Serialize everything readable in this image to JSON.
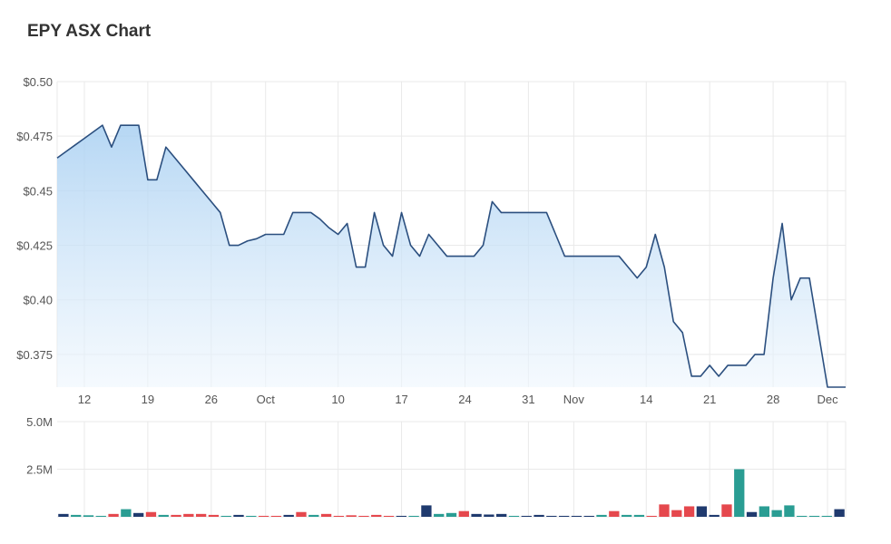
{
  "chart_title": "EPY ASX Chart",
  "colors": {
    "price_line": "#2b4f7f",
    "price_fill_top": "#a9d0f2",
    "price_fill_bottom": "#eef6fd",
    "vol_navy": "#1f3a6e",
    "vol_teal": "#2a9d93",
    "vol_red": "#e5484d",
    "grid": "#e9e9e9"
  },
  "chart_data": [
    {
      "type": "area",
      "title": "EPY ASX Chart",
      "x_tick_labels": [
        "12",
        "19",
        "26",
        "Oct",
        "10",
        "17",
        "24",
        "31",
        "Nov",
        "14",
        "21",
        "28",
        "Dec"
      ],
      "y_tick_labels": [
        "$0.50",
        "$0.475",
        "$0.45",
        "$0.425",
        "$0.40",
        "$0.375"
      ],
      "y_ticks": [
        0.5,
        0.475,
        0.45,
        0.425,
        0.4,
        0.375
      ],
      "ylim": [
        0.36,
        0.5
      ],
      "grid": true,
      "x": [
        "Sep 9",
        "Sep 10",
        "Sep 11",
        "Sep 12",
        "Sep 13",
        "Sep 14",
        "Sep 15",
        "Sep 16",
        "Sep 17",
        "Sep 18",
        "Sep 19",
        "Sep 20",
        "Sep 21",
        "Sep 22",
        "Sep 23",
        "Sep 24",
        "Sep 25",
        "Sep 26",
        "Sep 27",
        "Sep 28",
        "Sep 29",
        "Sep 30",
        "Oct 1",
        "Oct 2",
        "Oct 3",
        "Oct 4",
        "Oct 5",
        "Oct 6",
        "Oct 7",
        "Oct 8",
        "Oct 9",
        "Oct 10",
        "Oct 11",
        "Oct 12",
        "Oct 13",
        "Oct 14",
        "Oct 15",
        "Oct 16",
        "Oct 17",
        "Oct 18",
        "Oct 19",
        "Oct 20",
        "Oct 21",
        "Oct 22",
        "Oct 23",
        "Oct 24",
        "Oct 25",
        "Oct 26",
        "Oct 27",
        "Oct 28",
        "Oct 29",
        "Oct 30",
        "Oct 31",
        "Nov 1",
        "Nov 2",
        "Nov 3",
        "Nov 4",
        "Nov 5",
        "Nov 6",
        "Nov 7",
        "Nov 8",
        "Nov 9",
        "Nov 10",
        "Nov 11",
        "Nov 12",
        "Nov 13",
        "Nov 14",
        "Nov 15",
        "Nov 16",
        "Nov 17",
        "Nov 18",
        "Nov 19",
        "Nov 20",
        "Nov 21",
        "Nov 22",
        "Nov 23",
        "Nov 24",
        "Nov 25",
        "Nov 26",
        "Nov 27",
        "Nov 28",
        "Nov 29",
        "Nov 30",
        "Dec 1",
        "Dec 2",
        "Dec 3",
        "Dec 4",
        "Dec 5"
      ],
      "series": [
        {
          "values": [
            0.465,
            0.468,
            0.471,
            0.474,
            0.477,
            0.48,
            0.47,
            0.48,
            0.48,
            0.48,
            0.455,
            0.455,
            0.47,
            0.465,
            0.46,
            0.455,
            0.45,
            0.445,
            0.44,
            0.425,
            0.425,
            0.427,
            0.428,
            0.43,
            0.43,
            0.43,
            0.44,
            0.44,
            0.44,
            0.437,
            0.433,
            0.43,
            0.435,
            0.415,
            0.415,
            0.44,
            0.425,
            0.42,
            0.44,
            0.425,
            0.42,
            0.43,
            0.425,
            0.42,
            0.42,
            0.42,
            0.42,
            0.425,
            0.445,
            0.44,
            0.44,
            0.44,
            0.44,
            0.44,
            0.44,
            0.43,
            0.42,
            0.42,
            0.42,
            0.42,
            0.42,
            0.42,
            0.42,
            0.415,
            0.41,
            0.415,
            0.43,
            0.415,
            0.39,
            0.385,
            0.365,
            0.365,
            0.37,
            0.365,
            0.37,
            0.37,
            0.37,
            0.375,
            0.375,
            0.41,
            0.435,
            0.4,
            0.41,
            0.41,
            0.385,
            0.36,
            0.36,
            0.36
          ]
        }
      ]
    },
    {
      "type": "bar",
      "y_tick_labels": [
        "5.0M",
        "2.5M"
      ],
      "ylim": [
        0,
        5000000
      ],
      "grid": true,
      "values": [
        150000,
        100000,
        80000,
        50000,
        150000,
        400000,
        200000,
        250000,
        100000,
        100000,
        150000,
        150000,
        100000,
        50000,
        100000,
        50000,
        50000,
        50000,
        100000,
        250000,
        100000,
        150000,
        50000,
        80000,
        50000,
        100000,
        50000,
        50000,
        50000,
        600000,
        150000,
        200000,
        300000,
        150000,
        120000,
        150000,
        50000,
        50000,
        100000,
        50000,
        50000,
        50000,
        50000,
        100000,
        300000,
        100000,
        100000,
        50000,
        650000,
        350000,
        550000,
        550000,
        100000,
        650000,
        2500000,
        250000,
        550000,
        350000,
        600000,
        50000,
        50000,
        50000,
        400000
      ],
      "colors": [
        "navy",
        "teal",
        "teal",
        "teal",
        "red",
        "teal",
        "navy",
        "red",
        "teal",
        "red",
        "red",
        "red",
        "red",
        "teal",
        "navy",
        "teal",
        "red",
        "red",
        "navy",
        "red",
        "teal",
        "red",
        "red",
        "red",
        "red",
        "red",
        "red",
        "navy",
        "teal",
        "navy",
        "teal",
        "teal",
        "red",
        "navy",
        "navy",
        "navy",
        "teal",
        "navy",
        "navy",
        "navy",
        "navy",
        "navy",
        "navy",
        "teal",
        "red",
        "teal",
        "teal",
        "red",
        "red",
        "red",
        "red",
        "navy",
        "navy",
        "red",
        "teal",
        "navy",
        "teal",
        "teal",
        "teal",
        "teal",
        "teal",
        "teal",
        "navy"
      ]
    }
  ]
}
